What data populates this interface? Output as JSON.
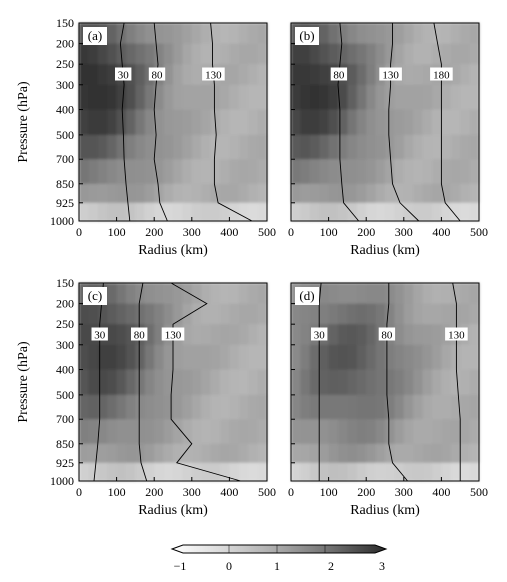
{
  "figure": {
    "x_axis_label": "Radius (km)",
    "y_axis_label": "Pressure (hPa)",
    "x_ticks": [
      "0",
      "100",
      "200",
      "300",
      "400",
      "500"
    ],
    "y_ticks": [
      "150",
      "200",
      "250",
      "300",
      "400",
      "500",
      "700",
      "850",
      "925",
      "1000"
    ],
    "colorbar_ticks": [
      "−1",
      "0",
      "1",
      "2",
      "3"
    ]
  },
  "chart_data": [
    {
      "type": "heatmap",
      "panel": "(a)",
      "x_range": [
        0,
        500
      ],
      "levels": [
        "150",
        "200",
        "250",
        "300",
        "400",
        "500",
        "700",
        "850",
        "925",
        "1000"
      ],
      "shading_range": [
        -1,
        3
      ],
      "dark_core": {
        "radius_km": [
          0,
          60
        ],
        "levels": [
          "250",
          "300",
          "400"
        ],
        "value": 2.9
      },
      "contours": [
        {
          "label": "30",
          "radii_km": [
            120,
            110,
            115,
            120,
            115,
            118,
            120,
            125,
            130,
            135
          ]
        },
        {
          "label": "80",
          "radii_km": [
            200,
            205,
            210,
            205,
            200,
            205,
            200,
            210,
            215,
            235
          ]
        },
        {
          "label": "130",
          "radii_km": [
            350,
            355,
            355,
            360,
            360,
            365,
            360,
            360,
            370,
            460
          ]
        }
      ]
    },
    {
      "type": "heatmap",
      "panel": "(b)",
      "x_range": [
        0,
        500
      ],
      "levels": [
        "150",
        "200",
        "250",
        "300",
        "400",
        "500",
        "700",
        "850",
        "925",
        "1000"
      ],
      "shading_range": [
        -1,
        3
      ],
      "dark_core": {
        "radius_km": [
          0,
          80
        ],
        "levels": [
          "250",
          "300",
          "400"
        ],
        "value": 2.8
      },
      "contours": [
        {
          "label": "80",
          "radii_km": [
            130,
            135,
            130,
            125,
            130,
            130,
            130,
            135,
            140,
            180
          ]
        },
        {
          "label": "130",
          "radii_km": [
            270,
            270,
            265,
            265,
            260,
            260,
            265,
            270,
            290,
            340
          ]
        },
        {
          "label": "180",
          "radii_km": [
            380,
            390,
            400,
            400,
            400,
            400,
            400,
            400,
            410,
            450
          ]
        }
      ]
    },
    {
      "type": "heatmap",
      "panel": "(c)",
      "x_range": [
        0,
        500
      ],
      "levels": [
        "150",
        "200",
        "250",
        "300",
        "400",
        "500",
        "700",
        "850",
        "925",
        "1000"
      ],
      "shading_range": [
        -1,
        3
      ],
      "dark_core": {
        "radius_km": [
          0,
          100
        ],
        "levels": [
          "250",
          "300",
          "400"
        ],
        "value": 2.5
      },
      "contours": [
        {
          "label": "30",
          "radii_km": [
            65,
            60,
            55,
            55,
            55,
            55,
            55,
            50,
            45,
            40
          ]
        },
        {
          "label": "80",
          "radii_km": [
            170,
            160,
            160,
            160,
            160,
            160,
            160,
            160,
            165,
            180
          ]
        },
        {
          "label": "130",
          "radii_km": [
            245,
            340,
            250,
            250,
            250,
            245,
            245,
            300,
            260,
            430
          ]
        }
      ]
    },
    {
      "type": "heatmap",
      "panel": "(d)",
      "x_range": [
        0,
        500
      ],
      "levels": [
        "150",
        "200",
        "250",
        "300",
        "400",
        "500",
        "700",
        "850",
        "925",
        "1000"
      ],
      "shading_range": [
        -1,
        3
      ],
      "dark_core": {
        "radius_km": [
          100,
          200
        ],
        "levels": [
          "300",
          "400"
        ],
        "value": 2.0
      },
      "contours": [
        {
          "label": "30",
          "radii_km": [
            80,
            75,
            75,
            75,
            75,
            75,
            75,
            75,
            75,
            75
          ]
        },
        {
          "label": "80",
          "radii_km": [
            260,
            260,
            255,
            255,
            255,
            255,
            260,
            260,
            270,
            310
          ]
        },
        {
          "label": "130",
          "radii_km": [
            430,
            440,
            440,
            440,
            440,
            445,
            450,
            450,
            450,
            450
          ]
        }
      ]
    }
  ]
}
